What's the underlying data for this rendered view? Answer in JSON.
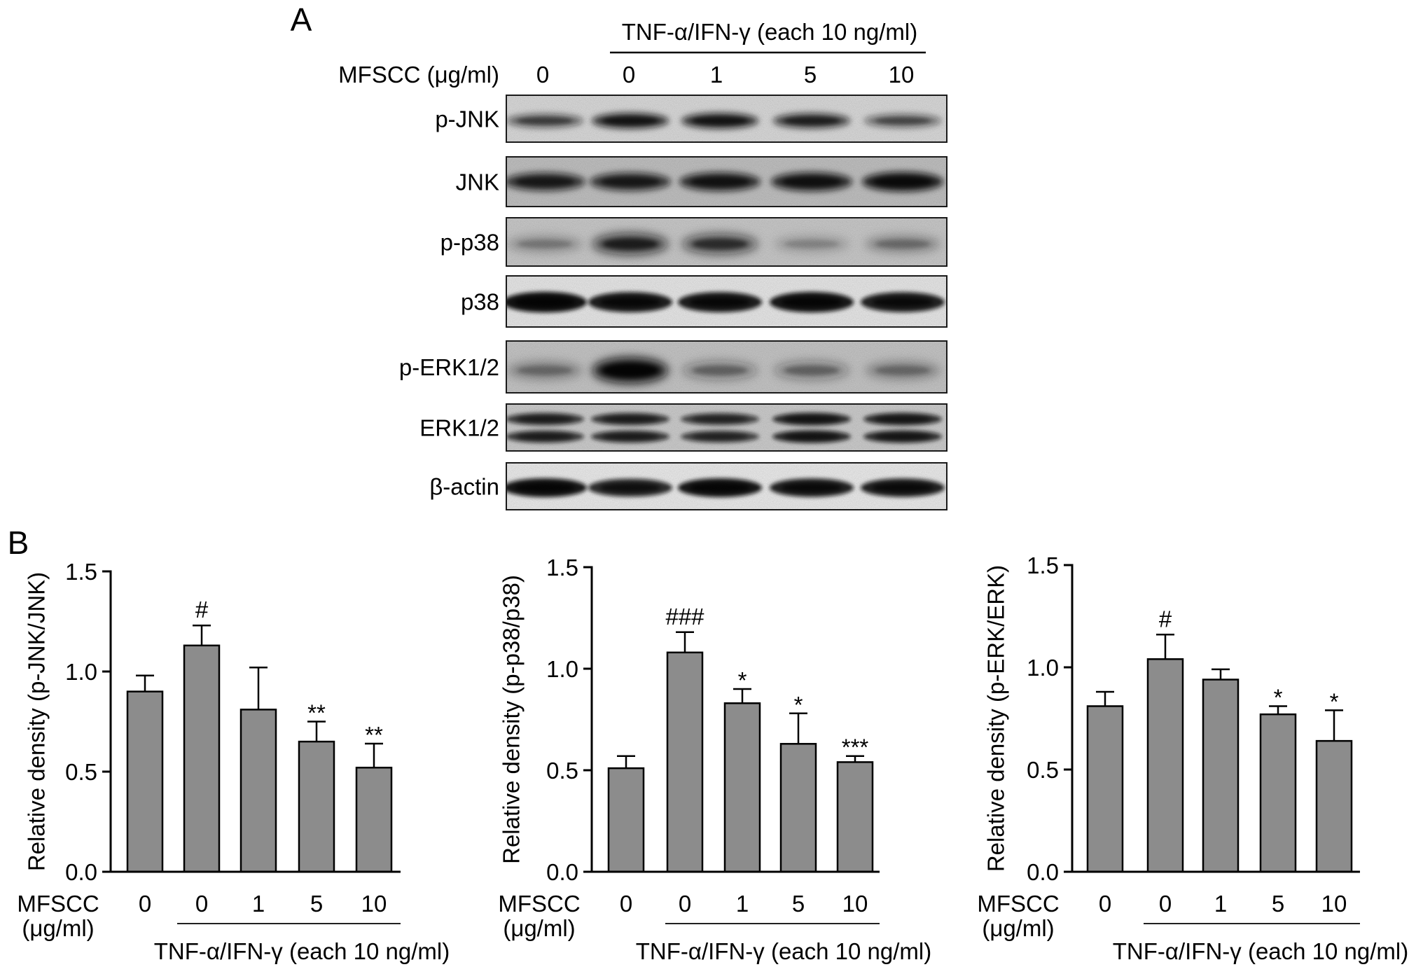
{
  "panel_a": {
    "label": "A",
    "treatment_label": "TNF-α/IFN-γ (each 10 ng/ml)",
    "dose_label": "MFSCC (μg/ml)",
    "lanes": [
      "0",
      "0",
      "1",
      "5",
      "10"
    ],
    "blots": [
      {
        "label": "p-JNK",
        "background": "#dedede",
        "intensity": [
          0.55,
          0.8,
          0.8,
          0.72,
          0.5
        ]
      },
      {
        "label": "JNK",
        "background": "#c4c4c4",
        "intensity": [
          0.75,
          0.75,
          0.8,
          0.82,
          0.88
        ]
      },
      {
        "label": "p-p38",
        "background": "#cdcdcd",
        "intensity": [
          0.25,
          0.72,
          0.62,
          0.2,
          0.3
        ]
      },
      {
        "label": "p38",
        "background": "#ececec",
        "intensity": [
          0.97,
          0.92,
          0.92,
          0.95,
          0.9
        ]
      },
      {
        "label": "p-ERK1/2",
        "background": "#c9c9c9",
        "intensity": [
          0.3,
          0.97,
          0.35,
          0.35,
          0.3
        ]
      },
      {
        "label": "ERK1/2",
        "background": "#d0d0d0",
        "intensity": [
          0.75,
          0.75,
          0.7,
          0.82,
          0.8
        ]
      },
      {
        "label": "β-actin",
        "background": "#f0f0f0",
        "intensity": [
          0.95,
          0.85,
          0.95,
          0.9,
          0.9
        ]
      }
    ]
  },
  "panel_b": {
    "label": "B"
  },
  "chart_data": [
    {
      "type": "bar",
      "categories": [
        "0",
        "0",
        "1",
        "5",
        "10"
      ],
      "values": [
        0.9,
        1.13,
        0.81,
        0.65,
        0.52
      ],
      "error_upper": [
        0.08,
        0.1,
        0.21,
        0.1,
        0.12
      ],
      "significance": [
        "",
        "#",
        "",
        "**",
        "**"
      ],
      "xlabel": "",
      "ylabel": "Relative density (p-JNK/JNK)",
      "ylim": [
        0,
        1.5
      ],
      "yticks": [
        "0.0",
        "0.5",
        "1.0",
        "1.5"
      ],
      "dose_label": [
        "MFSCC",
        "(μg/ml)"
      ],
      "treatment_label": "TNF-α/IFN-γ (each 10 ng/ml)",
      "bar_color": "#8c8c8c",
      "grid": false
    },
    {
      "type": "bar",
      "categories": [
        "0",
        "0",
        "1",
        "5",
        "10"
      ],
      "values": [
        0.51,
        1.08,
        0.83,
        0.63,
        0.54
      ],
      "error_upper": [
        0.06,
        0.1,
        0.07,
        0.15,
        0.03
      ],
      "significance": [
        "",
        "###",
        "*",
        "*",
        "***"
      ],
      "xlabel": "",
      "ylabel": "Relative density (p-p38/p38)",
      "ylim": [
        0,
        1.5
      ],
      "yticks": [
        "0.0",
        "0.5",
        "1.0",
        "1.5"
      ],
      "dose_label": [
        "MFSCC",
        "(μg/ml)"
      ],
      "treatment_label": "TNF-α/IFN-γ (each 10 ng/ml)",
      "bar_color": "#8c8c8c",
      "grid": false
    },
    {
      "type": "bar",
      "categories": [
        "0",
        "0",
        "1",
        "5",
        "10"
      ],
      "values": [
        0.81,
        1.04,
        0.94,
        0.77,
        0.64
      ],
      "error_upper": [
        0.07,
        0.12,
        0.05,
        0.04,
        0.15
      ],
      "significance": [
        "",
        "#",
        "",
        "*",
        "*"
      ],
      "xlabel": "",
      "ylabel": "Relative density (p-ERK/ERK)",
      "ylim": [
        0,
        1.5
      ],
      "yticks": [
        "0.0",
        "0.5",
        "1.0",
        "1.5"
      ],
      "dose_label": [
        "MFSCC",
        "(μg/ml)"
      ],
      "treatment_label": "TNF-α/IFN-γ (each 10 ng/ml)",
      "bar_color": "#8c8c8c",
      "grid": false
    }
  ]
}
